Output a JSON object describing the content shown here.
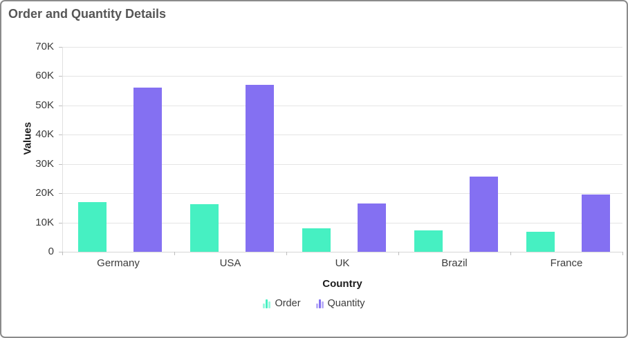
{
  "title": "Order and Quantity Details",
  "chart_data": {
    "type": "bar",
    "title": "Order and Quantity Details",
    "categories": [
      "Germany",
      "USA",
      "UK",
      "Brazil",
      "France"
    ],
    "series": [
      {
        "name": "Order",
        "color": "#46f0c2",
        "values": [
          17000,
          16200,
          8000,
          7200,
          6800
        ]
      },
      {
        "name": "Quantity",
        "color": "#8470f2",
        "values": [
          56000,
          57000,
          16500,
          25800,
          19500
        ]
      }
    ],
    "xlabel": "Country",
    "ylabel": "Values",
    "ylim": [
      0,
      70000
    ],
    "ytick_step": 10000,
    "ytick_labels": [
      "0",
      "10K",
      "20K",
      "30K",
      "40K",
      "50K",
      "60K",
      "70K"
    ],
    "grid": true,
    "legend_position": "bottom",
    "colors": {
      "title_text": "#565656",
      "axis_title_text": "#1c1c1c",
      "tick_text": "#3b3b3b",
      "gridline": "#e4e4e4",
      "card_border": "#8b8b8b"
    }
  }
}
